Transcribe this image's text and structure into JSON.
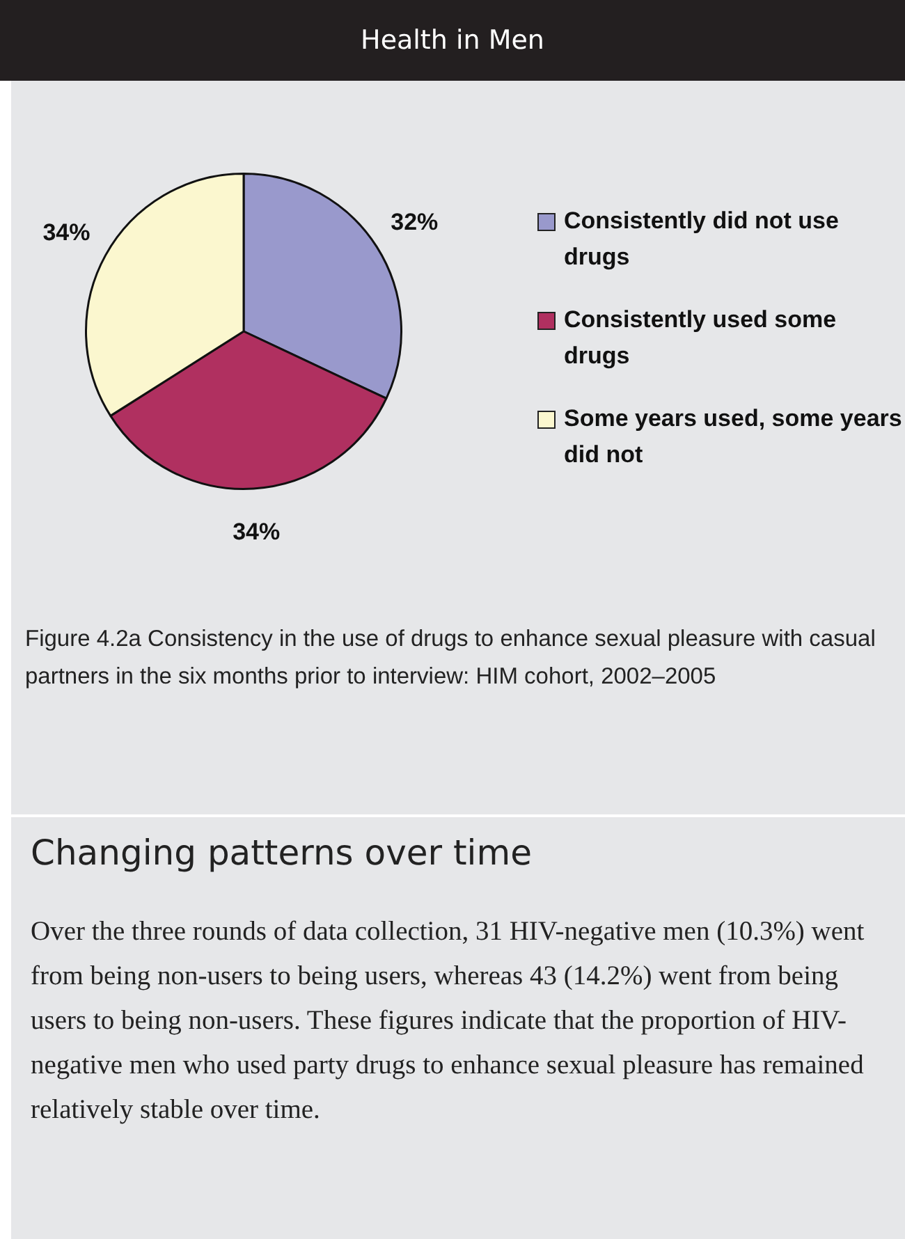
{
  "chart_data": {
    "type": "pie",
    "title": "Health in Men",
    "categories": [
      "Consistently did not use drugs",
      "Consistently used some drugs",
      "Some years used, some years did not"
    ],
    "values": [
      32,
      34,
      34
    ],
    "colors": [
      "#9999cc",
      "#b03060",
      "#fbf7cf"
    ],
    "value_labels": [
      "32%",
      "34%",
      "34%"
    ],
    "legend": "right",
    "annotations": [
      "Figure 4.2a  Consistency in the use of drugs to enhance sexual pleasure with casual partners in the six months prior to interview: HIM cohort, 2002–2005",
      "Changing patterns over time",
      "Over the three rounds of data collection, 31 HIV-negative men (10.3%) went from being non-users to being users, whereas 43 (14.2%) went from being users to being non-users. These figures indicate that the proportion of HIV-negative men who used party drugs to enhance sexual pleasure has remained relatively stable over time."
    ]
  }
}
